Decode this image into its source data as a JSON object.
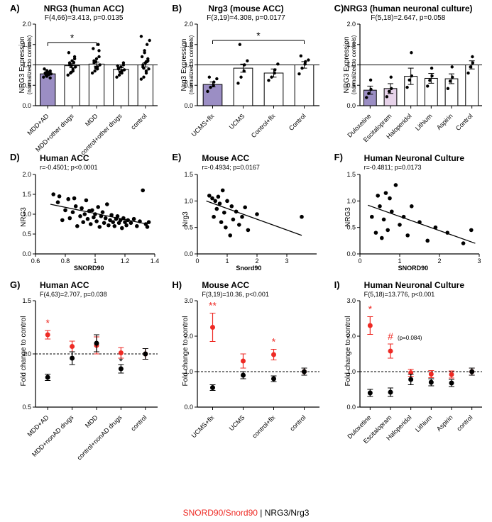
{
  "colors": {
    "purple": "#9b8ec4",
    "lightpink": "#e7d3ea",
    "white": "#ffffff",
    "black": "#000000",
    "red": "#ee2a24"
  },
  "panelA": {
    "label": "A)",
    "title": "NRG3 (human ACC)",
    "sub": "F(4,66)=3.413, p=0.0135",
    "ylabel": "NRG3 Expression",
    "ylabel_sub": "(normalized to controls)",
    "ylim": [
      0,
      2.0
    ],
    "yticks": [
      0,
      0.5,
      1.0,
      1.5,
      2.0
    ],
    "categories": [
      "MDD+AD",
      "MDD+other drugs",
      "MDD",
      "control+other drugs",
      "control"
    ],
    "bar_values": [
      0.78,
      0.98,
      1.02,
      0.89,
      1.0
    ],
    "bar_errs": [
      0.03,
      0.05,
      0.05,
      0.04,
      0.05
    ],
    "bar_fills": [
      "purple",
      "white",
      "white",
      "white",
      "white"
    ],
    "hline": 1.0,
    "sig": {
      "from": 0,
      "to": 2,
      "label": "*",
      "y": 1.55
    },
    "points": {
      "0": [
        0.7,
        0.75,
        0.76,
        0.78,
        0.78,
        0.79,
        0.8,
        0.82,
        0.85,
        0.68,
        0.9,
        0.86,
        0.72
      ],
      "1": [
        0.75,
        0.8,
        0.85,
        0.9,
        0.95,
        1.0,
        1.05,
        1.1,
        1.15,
        1.2,
        1.3,
        0.82,
        0.98,
        1.06
      ],
      "2": [
        0.8,
        0.85,
        0.9,
        0.95,
        1.0,
        1.05,
        1.1,
        1.15,
        1.2,
        1.35,
        1.4,
        1.08,
        0.93,
        1.5
      ],
      "3": [
        0.7,
        0.75,
        0.8,
        0.85,
        0.88,
        0.9,
        0.92,
        0.95,
        1.0,
        1.05,
        0.98,
        0.82
      ],
      "4": [
        0.65,
        0.7,
        0.8,
        0.85,
        0.9,
        0.95,
        1.0,
        1.05,
        1.1,
        1.15,
        1.2,
        1.3,
        1.35,
        1.5,
        1.6,
        1.7,
        0.92,
        1.08
      ]
    }
  },
  "panelB": {
    "label": "B)",
    "title": "Nrg3 (mouse ACC)",
    "sub": "F(3,19)=4.308, p=0.0177",
    "ylabel": "Nrg3 Expression",
    "ylabel_sub": "(normalized to controls)",
    "ylim": [
      0,
      2.0
    ],
    "yticks": [
      0,
      0.5,
      1.0,
      1.5,
      2.0
    ],
    "categories": [
      "UCMS+flx",
      "UCMS",
      "Control+flx",
      "Control"
    ],
    "bar_values": [
      0.52,
      0.92,
      0.8,
      1.0
    ],
    "bar_errs": [
      0.06,
      0.1,
      0.1,
      0.08
    ],
    "bar_fills": [
      "purple",
      "white",
      "white",
      "white"
    ],
    "hline": 1.0,
    "sig": {
      "from": 0,
      "to": 3,
      "label": "*",
      "y": 1.6
    },
    "points": {
      "0": [
        0.35,
        0.45,
        0.5,
        0.58,
        0.66,
        0.7
      ],
      "1": [
        0.55,
        0.7,
        0.85,
        1.0,
        1.1,
        1.5
      ],
      "2": [
        0.62,
        0.7,
        0.8,
        0.88,
        1.02
      ],
      "3": [
        0.78,
        0.92,
        1.02,
        1.08,
        1.12,
        1.22
      ]
    }
  },
  "panelC": {
    "label": "C)",
    "title": "NRG3 (human neuronal culture)",
    "sub": "F(5,18)=2.647, p=0.058",
    "ylabel": "NRG3 Expression",
    "ylabel_sub": "(normalized to controls)",
    "ylim": [
      0,
      2.0
    ],
    "yticks": [
      0,
      0.5,
      1.0,
      1.5,
      2.0
    ],
    "categories": [
      "Duloxetine",
      "Escitalopram",
      "Haloperidol",
      "Lithium",
      "Aspirin",
      "Control"
    ],
    "bar_values": [
      0.38,
      0.42,
      0.72,
      0.67,
      0.66,
      1.0
    ],
    "bar_errs": [
      0.1,
      0.12,
      0.2,
      0.12,
      0.12,
      0.1
    ],
    "bar_fills": [
      "purple",
      "lightpink",
      "white",
      "white",
      "white",
      "white"
    ],
    "hline": 1.0,
    "points": {
      "0": [
        0.2,
        0.3,
        0.4,
        0.63
      ],
      "1": [
        0.22,
        0.35,
        0.42,
        0.7
      ],
      "2": [
        0.45,
        0.63,
        0.73,
        1.3
      ],
      "3": [
        0.48,
        0.62,
        0.73,
        0.92
      ],
      "4": [
        0.42,
        0.6,
        0.7,
        0.95
      ],
      "5": [
        0.8,
        0.95,
        1.05,
        1.2
      ]
    }
  },
  "panelD": {
    "label": "D)",
    "title": "Human ACC",
    "stat": "r=-0.4501; p<0.0001",
    "xlabel": "SNORD90",
    "ylabel": "NRG3",
    "xlim": [
      0.6,
      1.4
    ],
    "xticks": [
      0.6,
      0.8,
      1.0,
      1.2,
      1.4
    ],
    "ylim": [
      0,
      2.0
    ],
    "yticks": [
      0,
      0.5,
      1.0,
      1.5,
      2.0
    ],
    "line": {
      "x1": 0.7,
      "y1": 1.25,
      "x2": 1.35,
      "y2": 0.75
    },
    "points": [
      [
        0.72,
        1.5
      ],
      [
        0.75,
        1.3
      ],
      [
        0.78,
        0.85
      ],
      [
        0.76,
        1.45
      ],
      [
        0.8,
        1.1
      ],
      [
        0.82,
        1.38
      ],
      [
        0.83,
        0.9
      ],
      [
        0.85,
        1.05
      ],
      [
        0.87,
        1.2
      ],
      [
        0.88,
        0.7
      ],
      [
        0.86,
        1.4
      ],
      [
        0.9,
        0.95
      ],
      [
        0.91,
        1.15
      ],
      [
        0.92,
        0.8
      ],
      [
        0.93,
        1.0
      ],
      [
        0.94,
        1.35
      ],
      [
        0.95,
        0.88
      ],
      [
        0.96,
        1.08
      ],
      [
        0.97,
        0.75
      ],
      [
        0.98,
        1.1
      ],
      [
        0.99,
        0.92
      ],
      [
        1.0,
        1.0
      ],
      [
        1.01,
        0.82
      ],
      [
        1.02,
        1.18
      ],
      [
        1.03,
        0.68
      ],
      [
        1.04,
        0.95
      ],
      [
        1.05,
        1.05
      ],
      [
        1.06,
        0.78
      ],
      [
        1.07,
        0.9
      ],
      [
        1.08,
        1.25
      ],
      [
        1.09,
        0.72
      ],
      [
        1.1,
        0.85
      ],
      [
        1.11,
        0.98
      ],
      [
        1.12,
        0.8
      ],
      [
        1.13,
        0.7
      ],
      [
        1.14,
        0.88
      ],
      [
        1.15,
        0.95
      ],
      [
        1.16,
        0.78
      ],
      [
        1.17,
        0.85
      ],
      [
        1.18,
        0.65
      ],
      [
        1.19,
        0.9
      ],
      [
        1.2,
        0.8
      ],
      [
        1.21,
        0.72
      ],
      [
        1.22,
        0.85
      ],
      [
        1.24,
        0.78
      ],
      [
        1.26,
        0.88
      ],
      [
        1.28,
        0.7
      ],
      [
        1.3,
        0.82
      ],
      [
        1.32,
        1.6
      ],
      [
        1.34,
        0.75
      ],
      [
        1.35,
        0.68
      ],
      [
        1.36,
        0.8
      ]
    ]
  },
  "panelE": {
    "label": "E)",
    "title": "Mouse ACC",
    "stat": "r=-0.4934; p=0.0167",
    "xlabel": "Snord90",
    "ylabel": "Nrg3",
    "xlim": [
      0,
      4
    ],
    "xticks": [
      0,
      1,
      2,
      3
    ],
    "ylim": [
      0,
      1.5
    ],
    "yticks": [
      0,
      0.5,
      1.0,
      1.5
    ],
    "line": {
      "x1": 0.3,
      "y1": 1.0,
      "x2": 3.5,
      "y2": 0.35
    },
    "points": [
      [
        0.4,
        1.1
      ],
      [
        0.5,
        1.05
      ],
      [
        0.55,
        0.7
      ],
      [
        0.6,
        1.0
      ],
      [
        0.65,
        0.85
      ],
      [
        0.7,
        1.08
      ],
      [
        0.75,
        0.95
      ],
      [
        0.8,
        0.6
      ],
      [
        0.85,
        1.2
      ],
      [
        0.9,
        0.78
      ],
      [
        0.95,
        0.5
      ],
      [
        1.0,
        1.0
      ],
      [
        1.1,
        0.35
      ],
      [
        1.15,
        0.9
      ],
      [
        1.2,
        0.65
      ],
      [
        1.3,
        0.8
      ],
      [
        1.4,
        0.55
      ],
      [
        1.5,
        0.7
      ],
      [
        1.6,
        0.88
      ],
      [
        1.7,
        0.45
      ],
      [
        2.0,
        0.75
      ],
      [
        3.5,
        0.7
      ]
    ]
  },
  "panelF": {
    "label": "F)",
    "title": "Human Neuronal Culture",
    "stat": "r=-0.4811; p=0.0173",
    "xlabel": "SNORD90",
    "ylabel": "NRG3",
    "xlim": [
      0,
      3
    ],
    "xticks": [
      0,
      1,
      2,
      3
    ],
    "ylim": [
      0,
      1.5
    ],
    "yticks": [
      0,
      0.5,
      1.0,
      1.5
    ],
    "line": {
      "x1": 0.2,
      "y1": 0.92,
      "x2": 2.9,
      "y2": 0.2
    },
    "points": [
      [
        0.3,
        0.7
      ],
      [
        0.4,
        0.4
      ],
      [
        0.45,
        1.1
      ],
      [
        0.5,
        0.9
      ],
      [
        0.55,
        0.3
      ],
      [
        0.6,
        0.65
      ],
      [
        0.65,
        1.15
      ],
      [
        0.7,
        0.45
      ],
      [
        0.75,
        1.05
      ],
      [
        0.8,
        0.8
      ],
      [
        0.9,
        1.3
      ],
      [
        1.0,
        0.55
      ],
      [
        1.1,
        0.7
      ],
      [
        1.2,
        0.35
      ],
      [
        1.3,
        0.9
      ],
      [
        1.5,
        0.6
      ],
      [
        1.7,
        0.25
      ],
      [
        1.9,
        0.5
      ],
      [
        2.2,
        0.4
      ],
      [
        2.6,
        0.2
      ],
      [
        2.8,
        0.45
      ]
    ]
  },
  "panelG": {
    "label": "G)",
    "title": "Human ACC",
    "sub": "F(4,63)=2.707, p=0.038",
    "ylabel": "Fold change to control",
    "ylim": [
      0.5,
      1.5
    ],
    "yticks": [
      0.5,
      1.0,
      1.5
    ],
    "hline": 1.0,
    "categories": [
      "MDD+AD",
      "MDD+nonAD drugs",
      "MDD",
      "control+nonAD drugs",
      "control"
    ],
    "red": {
      "v": [
        1.18,
        1.07,
        1.08,
        1.01,
        1.0
      ],
      "e": [
        0.04,
        0.05,
        0.08,
        0.05,
        0.05
      ]
    },
    "black": {
      "v": [
        0.78,
        0.96,
        1.1,
        0.86,
        1.0
      ],
      "e": [
        0.03,
        0.06,
        0.08,
        0.04,
        0.05
      ]
    },
    "sig": {
      "0": {
        "label": "*",
        "color": "red"
      },
      "3": {
        "label": "*",
        "color": "black"
      }
    }
  },
  "panelH": {
    "label": "H)",
    "title": "Mouse ACC",
    "sub": "F(3,19)=10.36, p<0.001",
    "ylabel": "Fold change to control",
    "ylim": [
      0,
      3.0
    ],
    "yticks": [
      0,
      1.0,
      2.0,
      3.0
    ],
    "hline": 1.0,
    "categories": [
      "UCMS+flx",
      "UCMS",
      "control+flx",
      "control"
    ],
    "red": {
      "v": [
        2.25,
        1.3,
        1.48,
        1.0
      ],
      "e": [
        0.4,
        0.2,
        0.15,
        0.1
      ]
    },
    "black": {
      "v": [
        0.55,
        0.9,
        0.8,
        1.0
      ],
      "e": [
        0.08,
        0.1,
        0.08,
        0.1
      ]
    },
    "sig": {
      "0": {
        "label": "**",
        "color": "red"
      },
      "2": {
        "label": "*",
        "color": "red"
      }
    }
  },
  "panelI": {
    "label": "I)",
    "title": "Human Neuronal Culture",
    "sub": "F(5,18)=13.776, p<0.001",
    "ylabel": "Fold change to control",
    "ylim": [
      0,
      3.0
    ],
    "yticks": [
      0,
      1.0,
      2.0,
      3.0
    ],
    "hline": 1.0,
    "categories": [
      "Duloxetine",
      "Escitalopram",
      "Haloperidol",
      "Lithium",
      "Aspirin",
      "control"
    ],
    "red": {
      "v": [
        2.3,
        1.58,
        0.97,
        0.93,
        0.92,
        1.0
      ],
      "e": [
        0.25,
        0.2,
        0.1,
        0.1,
        0.1,
        0.1
      ]
    },
    "black": {
      "v": [
        0.4,
        0.42,
        0.78,
        0.7,
        0.68,
        1.0
      ],
      "e": [
        0.1,
        0.12,
        0.15,
        0.1,
        0.1,
        0.1
      ]
    },
    "sig": {
      "0": {
        "label": "*",
        "color": "red"
      },
      "1": {
        "label": "#",
        "color": "red",
        "extra": "(p=0.084)"
      }
    }
  },
  "legend": {
    "red": "SNORD90/Snord90",
    "sep": " | ",
    "black": "NRG3/Nrg3"
  }
}
